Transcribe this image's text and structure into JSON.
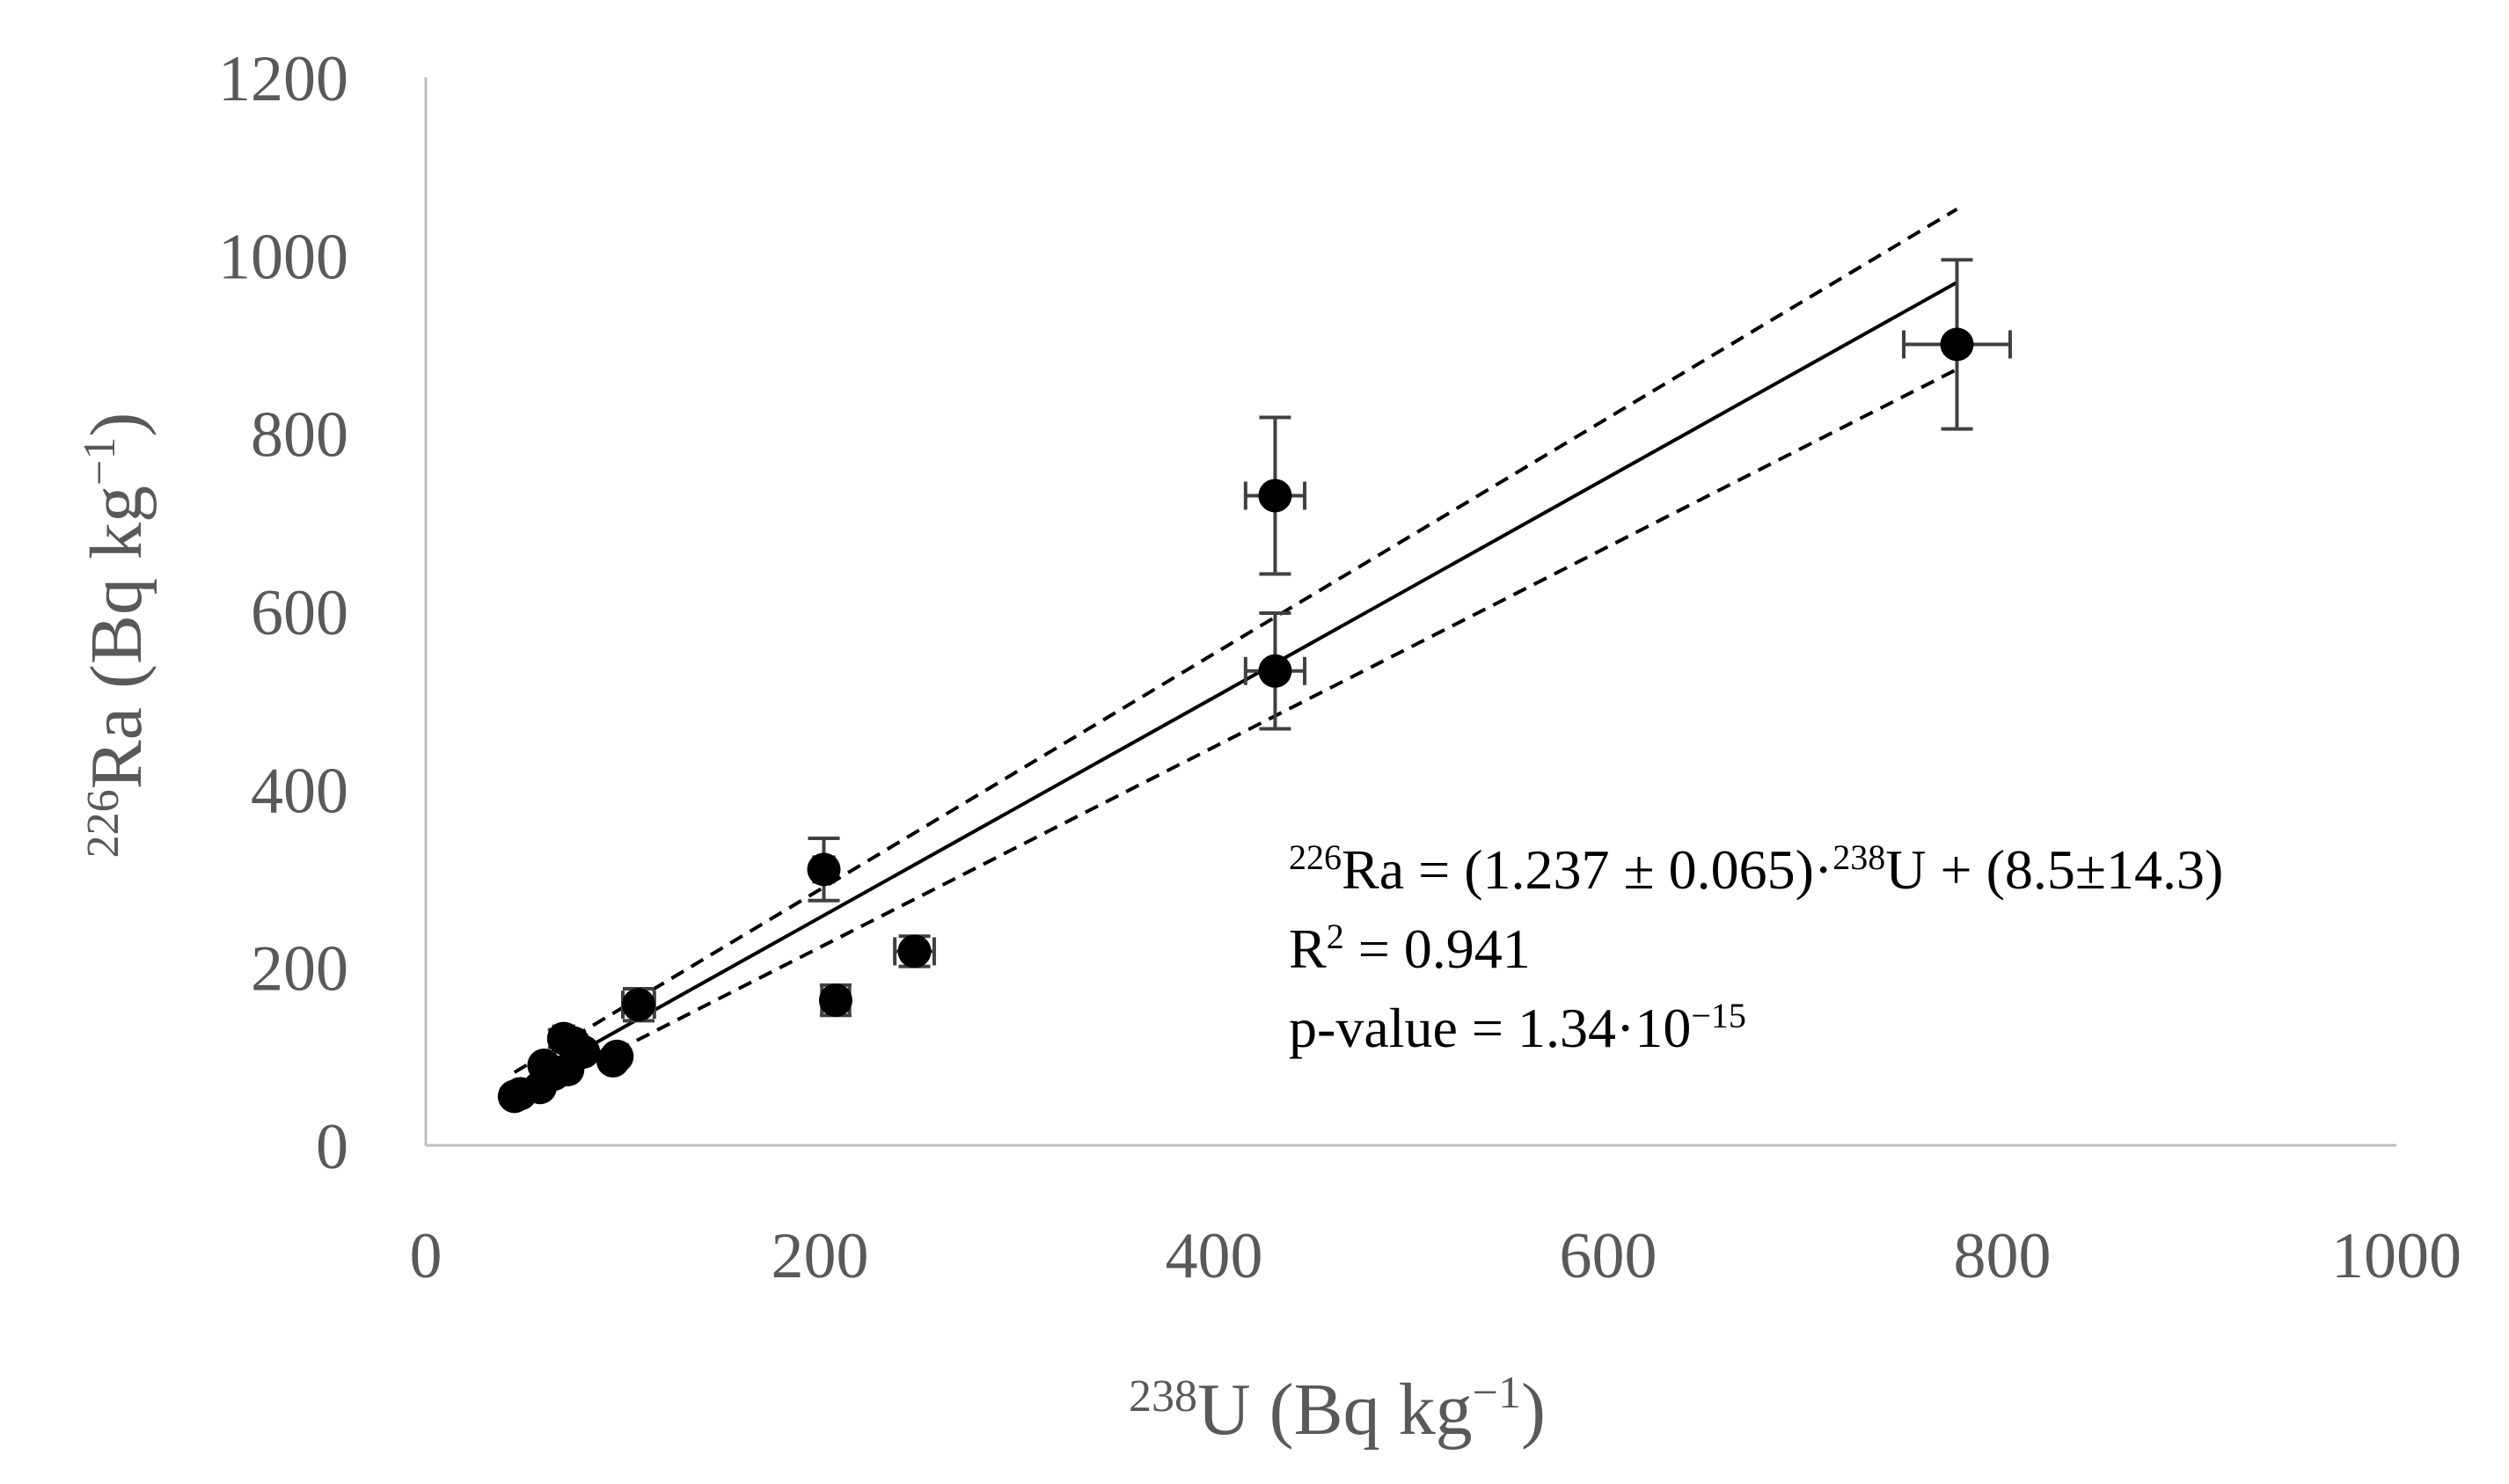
{
  "chart_data": {
    "type": "scatter",
    "title": "",
    "xlabel": {
      "sup": "238",
      "main": "U (Bq kg",
      "exp": "−1",
      "close": ")"
    },
    "ylabel": {
      "sup": "226",
      "main": "Ra (Bq kg",
      "exp": "−1",
      "close": ")"
    },
    "xlim": [
      0,
      1000
    ],
    "ylim": [
      0,
      1200
    ],
    "x_ticks": [
      0,
      200,
      400,
      600,
      800,
      1000
    ],
    "y_ticks": [
      0,
      200,
      400,
      600,
      800,
      1000,
      1200
    ],
    "x_tick_labels": [
      "0",
      "200",
      "400",
      "600",
      "800",
      "1000"
    ],
    "y_tick_labels": [
      "0",
      "200",
      "400",
      "600",
      "800",
      "1000",
      "1200"
    ],
    "grid": false,
    "colors": {
      "points": "#000000",
      "axis": "#bfbfbf",
      "error_bars": "#404040",
      "text": "#595959"
    },
    "points": [
      {
        "x": 45,
        "y": 55,
        "xerr": 0,
        "yerr": 0
      },
      {
        "x": 48,
        "y": 58,
        "xerr": 0,
        "yerr": 0
      },
      {
        "x": 58,
        "y": 65,
        "xerr": 0,
        "yerr": 0
      },
      {
        "x": 60,
        "y": 90,
        "xerr": 0,
        "yerr": 0
      },
      {
        "x": 65,
        "y": 80,
        "xerr": 0,
        "yerr": 0
      },
      {
        "x": 70,
        "y": 120,
        "xerr": 5,
        "yerr": 10
      },
      {
        "x": 72,
        "y": 85,
        "xerr": 0,
        "yerr": 0
      },
      {
        "x": 75,
        "y": 115,
        "xerr": 0,
        "yerr": 0
      },
      {
        "x": 80,
        "y": 105,
        "xerr": 0,
        "yerr": 0
      },
      {
        "x": 95,
        "y": 95,
        "xerr": 0,
        "yerr": 0
      },
      {
        "x": 97,
        "y": 100,
        "xerr": 0,
        "yerr": 0
      },
      {
        "x": 108,
        "y": 158,
        "xerr": 8,
        "yerr": 18
      },
      {
        "x": 202,
        "y": 310,
        "xerr": 5,
        "yerr": 35
      },
      {
        "x": 208,
        "y": 163,
        "xerr": 7,
        "yerr": 17
      },
      {
        "x": 248,
        "y": 218,
        "xerr": 10,
        "yerr": 17
      },
      {
        "x": 431,
        "y": 730,
        "xerr": 15,
        "yerr": 88
      },
      {
        "x": 431,
        "y": 533,
        "xerr": 15,
        "yerr": 65
      },
      {
        "x": 777,
        "y": 900,
        "xerr": 27,
        "yerr": 95
      }
    ],
    "fit": {
      "slope": 1.237,
      "intercept": 8.5,
      "x_range": [
        45,
        777
      ]
    },
    "confidence_band": {
      "upper": [
        {
          "x": 45,
          "y": 82
        },
        {
          "x": 777,
          "y": 1052
        }
      ],
      "lower": [
        {
          "x": 45,
          "y": 48
        },
        {
          "x": 777,
          "y": 872
        }
      ]
    },
    "annotation": {
      "line1": {
        "sup": "226",
        "a": "Ra = (1.237 ± 0.065)·",
        "sup2": "238",
        "b": "U + (8.5±14.3)"
      },
      "line2": {
        "a": "R",
        "sup": "2",
        "b": " = 0.941"
      },
      "line3": {
        "a": "p-value = 1.34·10",
        "sup": "−15"
      }
    }
  }
}
